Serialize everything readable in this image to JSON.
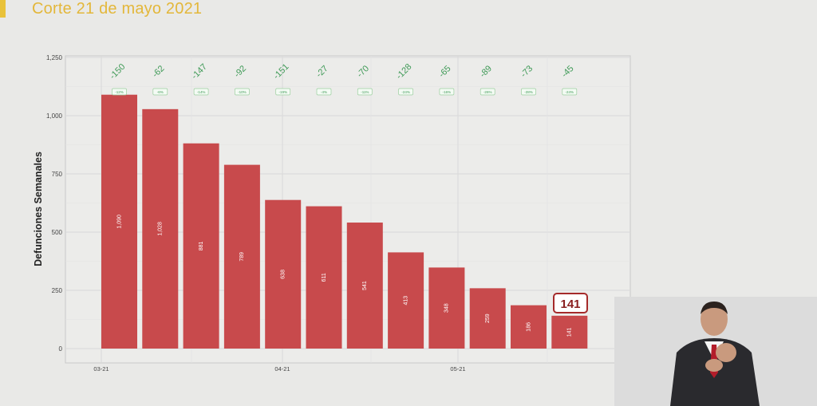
{
  "header": {
    "title": "Corte 21 de mayo 2021"
  },
  "colors": {
    "accent": "#e3b73a",
    "bar": "#c84a4c",
    "delta_text": "#3f9a57",
    "callout_border": "#a52a2a"
  },
  "chart_data": {
    "type": "bar",
    "ylabel": "Defunciones Semanales",
    "xlabel": "",
    "ylim": [
      0,
      1250
    ],
    "yticks": [
      0,
      250,
      500,
      750,
      1000,
      1250
    ],
    "ytick_labels": [
      "0",
      "250",
      "500",
      "750",
      "1,000",
      "1,250"
    ],
    "xtick_labels": [
      "03-21",
      "04-21",
      "05-21"
    ],
    "values": [
      1090,
      1028,
      881,
      789,
      638,
      611,
      541,
      413,
      348,
      259,
      186,
      141
    ],
    "value_labels": [
      "1,090",
      "1,028",
      "881",
      "789",
      "638",
      "611",
      "541",
      "413",
      "348",
      "259",
      "186",
      "141"
    ],
    "weekly_change": [
      "-150",
      "-62",
      "-147",
      "-92",
      "-151",
      "-27",
      "-70",
      "-128",
      "-65",
      "-89",
      "-73",
      "-45"
    ],
    "weekly_change_pct": [
      "-12%",
      "-6%",
      "-14%",
      "-10%",
      "-19%",
      "-4%",
      "-11%",
      "-24%",
      "-16%",
      "-26%",
      "-28%",
      "-24%"
    ],
    "highlight_label": "141",
    "grid": true
  }
}
